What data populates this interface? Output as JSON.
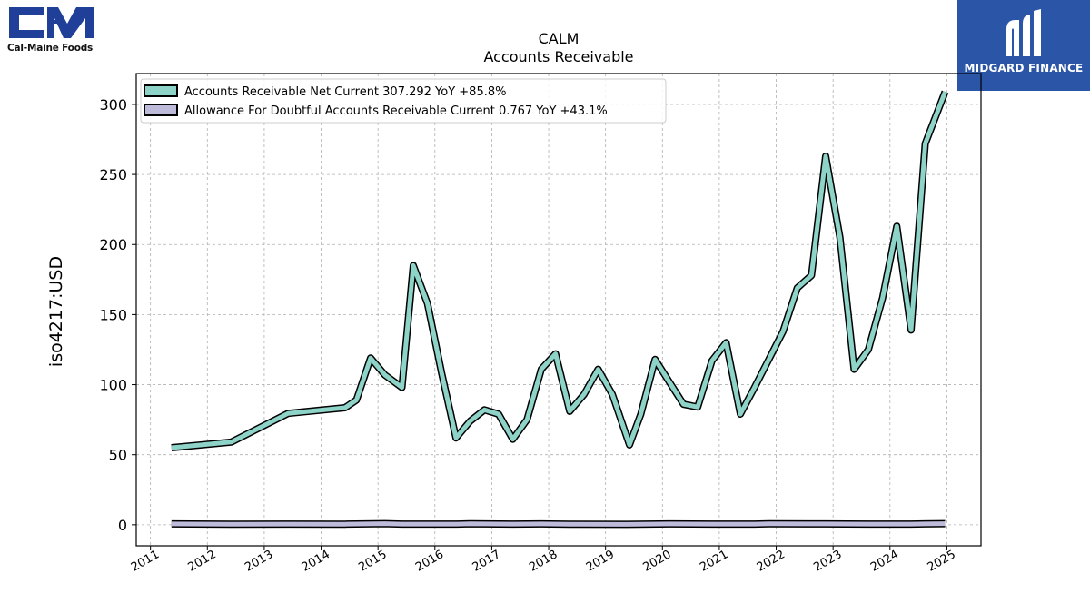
{
  "brands": {
    "left_name": "Cal-Maine Foods",
    "left_icon": "cal-maine-cm-logo",
    "right_name": "MIDGARD FINANCE",
    "right_icon": "midgard-m-logo",
    "left_color": "#1f3f98",
    "right_bg": "#2b55a6"
  },
  "chart_data": {
    "type": "line",
    "title": "CALM",
    "subtitle": "Accounts Receivable",
    "xlabel": "",
    "ylabel": "iso4217:USD",
    "xlim": [
      2010.75,
      2025.6
    ],
    "ylim": [
      -15,
      322
    ],
    "x_ticks": [
      2011,
      2012,
      2013,
      2014,
      2015,
      2016,
      2017,
      2018,
      2019,
      2020,
      2021,
      2022,
      2023,
      2024,
      2025
    ],
    "x_tick_labels": [
      "2011",
      "2012",
      "2013",
      "2014",
      "2015",
      "2016",
      "2017",
      "2018",
      "2019",
      "2020",
      "2021",
      "2022",
      "2023",
      "2024",
      "2025"
    ],
    "y_ticks": [
      0,
      50,
      100,
      150,
      200,
      250,
      300
    ],
    "y_tick_labels": [
      "0",
      "50",
      "100",
      "150",
      "200",
      "250",
      "300"
    ],
    "grid": true,
    "legend_position": "top-left",
    "series": [
      {
        "name": "Accounts Receivable Net Current",
        "legend_label": "Accounts Receivable Net Current  307.292 YoY +85.8%",
        "color": "#8dd3c7",
        "points": [
          [
            2011.37,
            55
          ],
          [
            2012.42,
            59
          ],
          [
            2013.42,
            79.5
          ],
          [
            2014.42,
            83.5
          ],
          [
            2014.62,
            89
          ],
          [
            2014.87,
            119
          ],
          [
            2015.12,
            107
          ],
          [
            2015.42,
            98
          ],
          [
            2015.62,
            185
          ],
          [
            2015.87,
            158
          ],
          [
            2016.12,
            108
          ],
          [
            2016.37,
            62
          ],
          [
            2016.62,
            74
          ],
          [
            2016.87,
            82
          ],
          [
            2017.12,
            79
          ],
          [
            2017.37,
            61
          ],
          [
            2017.62,
            75
          ],
          [
            2017.87,
            111
          ],
          [
            2018.12,
            122
          ],
          [
            2018.37,
            81
          ],
          [
            2018.62,
            93
          ],
          [
            2018.87,
            111
          ],
          [
            2019.12,
            93
          ],
          [
            2019.42,
            57
          ],
          [
            2019.62,
            79
          ],
          [
            2019.87,
            118
          ],
          [
            2020.12,
            102
          ],
          [
            2020.37,
            86
          ],
          [
            2020.62,
            84
          ],
          [
            2020.87,
            117
          ],
          [
            2021.12,
            130
          ],
          [
            2021.37,
            79
          ],
          [
            2021.62,
            98
          ],
          [
            2021.87,
            118
          ],
          [
            2022.12,
            138
          ],
          [
            2022.37,
            169
          ],
          [
            2022.62,
            178
          ],
          [
            2022.87,
            263
          ],
          [
            2023.12,
            205
          ],
          [
            2023.37,
            111
          ],
          [
            2023.62,
            125
          ],
          [
            2023.87,
            162
          ],
          [
            2024.12,
            213
          ],
          [
            2024.37,
            139
          ],
          [
            2024.62,
            272
          ],
          [
            2024.97,
            309
          ]
        ]
      },
      {
        "name": "Allowance For Doubtful Accounts Receivable Current",
        "legend_label": "Allowance For Doubtful Accounts Receivable Current  0.767 YoY +43.1%",
        "color": "#bebada",
        "points": [
          [
            2011.37,
            0.6
          ],
          [
            2012.42,
            0.4
          ],
          [
            2013.42,
            0.5
          ],
          [
            2014.42,
            0.4
          ],
          [
            2015.12,
            0.8
          ],
          [
            2015.42,
            0.5
          ],
          [
            2016.37,
            0.5
          ],
          [
            2016.62,
            0.7
          ],
          [
            2017.37,
            0.5
          ],
          [
            2017.87,
            0.6
          ],
          [
            2018.37,
            0.4
          ],
          [
            2019.37,
            0.3
          ],
          [
            2020.12,
            0.6
          ],
          [
            2020.87,
            0.5
          ],
          [
            2021.62,
            0.5
          ],
          [
            2021.87,
            0.7
          ],
          [
            2022.87,
            0.6
          ],
          [
            2023.62,
            0.5
          ],
          [
            2024.37,
            0.5
          ],
          [
            2024.97,
            0.8
          ]
        ]
      }
    ]
  }
}
